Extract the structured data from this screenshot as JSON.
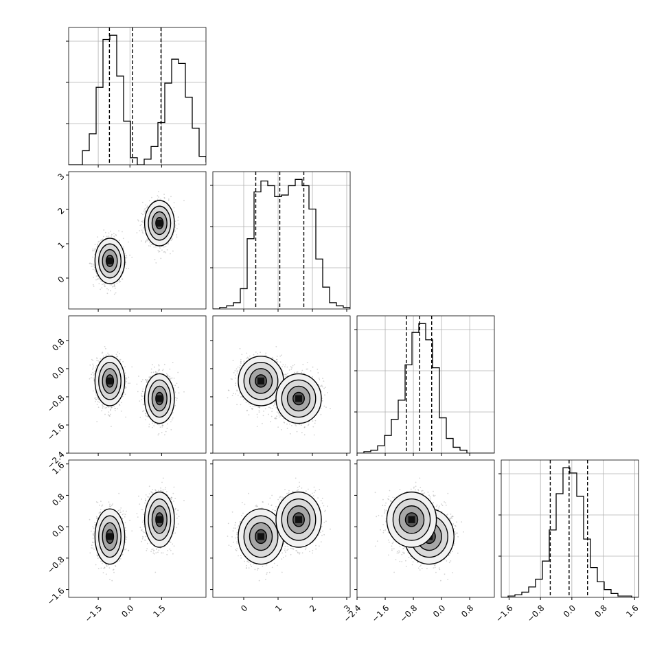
{
  "chart_data": {
    "type": "corner",
    "title": "",
    "grid": true,
    "quantiles_shown": "dashed vertical lines on each 1D histogram",
    "colors": {
      "ink": "#000000",
      "grid": "#b0b0b0",
      "samples": "#808080"
    },
    "parameters": [
      {
        "label": "",
        "range": [
          -2.9,
          3.6
        ],
        "ticks": [
          -1.5,
          0.0,
          1.5
        ],
        "tick_labels": [
          "−1.5",
          "0.0",
          "1.5"
        ],
        "quantiles": [
          -0.97,
          0.12,
          1.47
        ]
      },
      {
        "label": "",
        "range": [
          -0.9,
          3.1
        ],
        "ticks": [
          0,
          1,
          2,
          3
        ],
        "tick_labels": [
          "0",
          "1",
          "2",
          "3"
        ],
        "quantiles": [
          0.35,
          1.05,
          1.75
        ]
      },
      {
        "label": "",
        "range": [
          -2.4,
          1.5
        ],
        "ticks": [
          -2.4,
          -1.6,
          -0.8,
          0.0,
          0.8
        ],
        "tick_labels": [
          "−2.4",
          "−1.6",
          "−0.8",
          "0.0",
          "0.8"
        ],
        "quantiles": [
          -1.0,
          -0.62,
          -0.28
        ]
      },
      {
        "label": "",
        "range": [
          -1.8,
          1.7
        ],
        "ticks": [
          -1.6,
          -0.8,
          0.0,
          0.8,
          1.6
        ],
        "tick_labels": [
          "−1.6",
          "−0.8",
          "0.0",
          "0.8",
          "1.6"
        ],
        "quantiles": [
          -0.55,
          -0.07,
          0.4
        ]
      }
    ],
    "histograms": [
      {
        "param": 0,
        "edges_start": -2.9,
        "bin_width": 0.325,
        "counts": [
          0,
          0,
          10,
          22,
          55,
          89,
          92,
          63,
          31,
          5,
          0,
          4,
          13,
          30,
          58,
          75,
          72,
          48,
          26,
          6,
          2,
          0
        ]
      },
      {
        "param": 1,
        "edges_start": -0.9,
        "bin_width": 0.2,
        "counts": [
          0,
          1,
          2,
          4,
          13,
          45,
          75,
          82,
          79,
          72,
          73,
          79,
          83,
          79,
          64,
          32,
          14,
          4,
          2,
          1
        ]
      },
      {
        "param": 2,
        "edges_start": -2.4,
        "bin_width": 0.195,
        "counts": [
          0,
          1,
          2,
          5,
          12,
          23,
          36,
          60,
          82,
          88,
          77,
          58,
          24,
          10,
          4,
          2,
          0,
          0,
          0,
          0
        ]
      },
      {
        "param": 3,
        "edges_start": -1.8,
        "bin_width": 0.175,
        "counts": [
          0,
          1,
          2,
          4,
          8,
          14,
          28,
          52,
          80,
          100,
          96,
          78,
          45,
          23,
          12,
          6,
          3,
          1,
          1,
          0
        ]
      }
    ],
    "components": [
      {
        "weight": 0.5,
        "mean": [
          -0.95,
          0.5,
          -0.35,
          -0.25
        ],
        "sd": [
          0.32,
          0.3,
          0.32,
          0.32
        ]
      },
      {
        "weight": 0.5,
        "mean": [
          1.4,
          1.6,
          -0.85,
          0.18
        ],
        "sd": [
          0.32,
          0.3,
          0.32,
          0.32
        ]
      }
    ]
  }
}
